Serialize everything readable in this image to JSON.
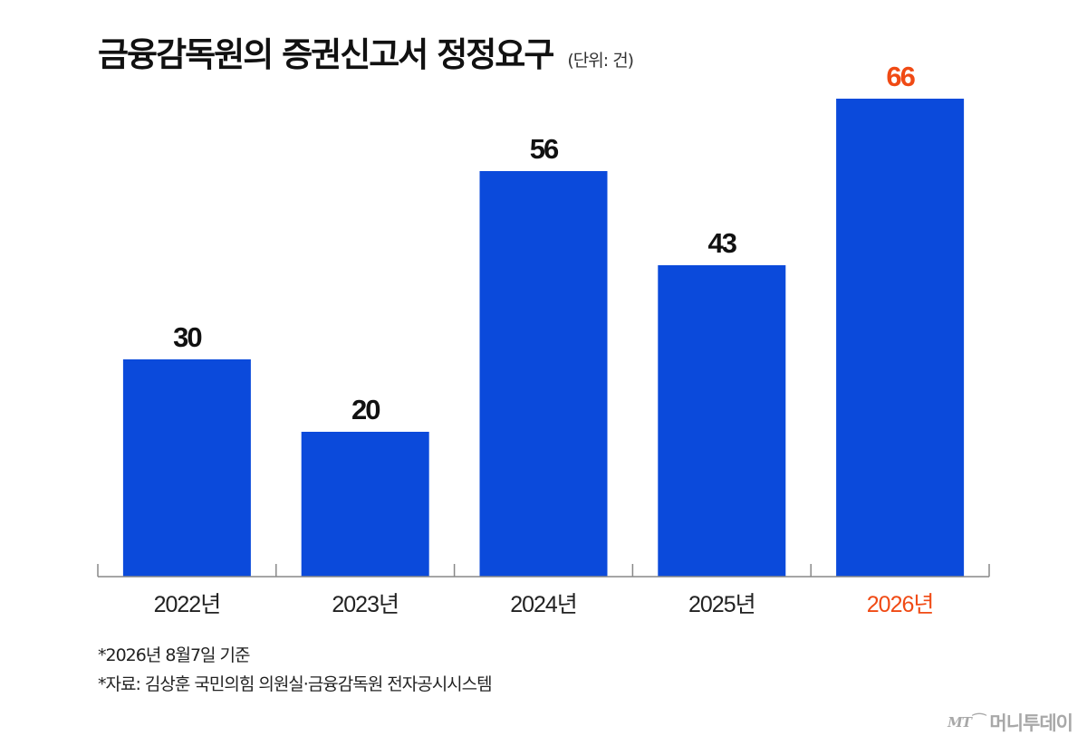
{
  "header": {
    "title": "금융감독원의 증권신고서 정정요구",
    "unit": "(단위: 건)"
  },
  "notes": [
    "*2026년 8월7일 기준",
    "*자료: 김상훈 국민의힘 의원실·금융감독원 전자공시시스템"
  ],
  "logo": {
    "mark": "MT",
    "name": "머니투데이"
  },
  "colors": {
    "bar": "#0b4adb",
    "highlight": "#f04a14",
    "label": "#111111",
    "axis": "#888888",
    "tick_label": "#222222"
  },
  "chart_data": {
    "type": "bar",
    "categories": [
      "2022년",
      "2023년",
      "2024년",
      "2025년",
      "2026년"
    ],
    "values": [
      30,
      20,
      56,
      43,
      66
    ],
    "highlight_index": 4,
    "ylim": [
      0,
      66
    ],
    "data_labels": true,
    "grid": false,
    "title": "금융감독원의 증권신고서 정정요구",
    "xlabel": "",
    "ylabel": ""
  }
}
